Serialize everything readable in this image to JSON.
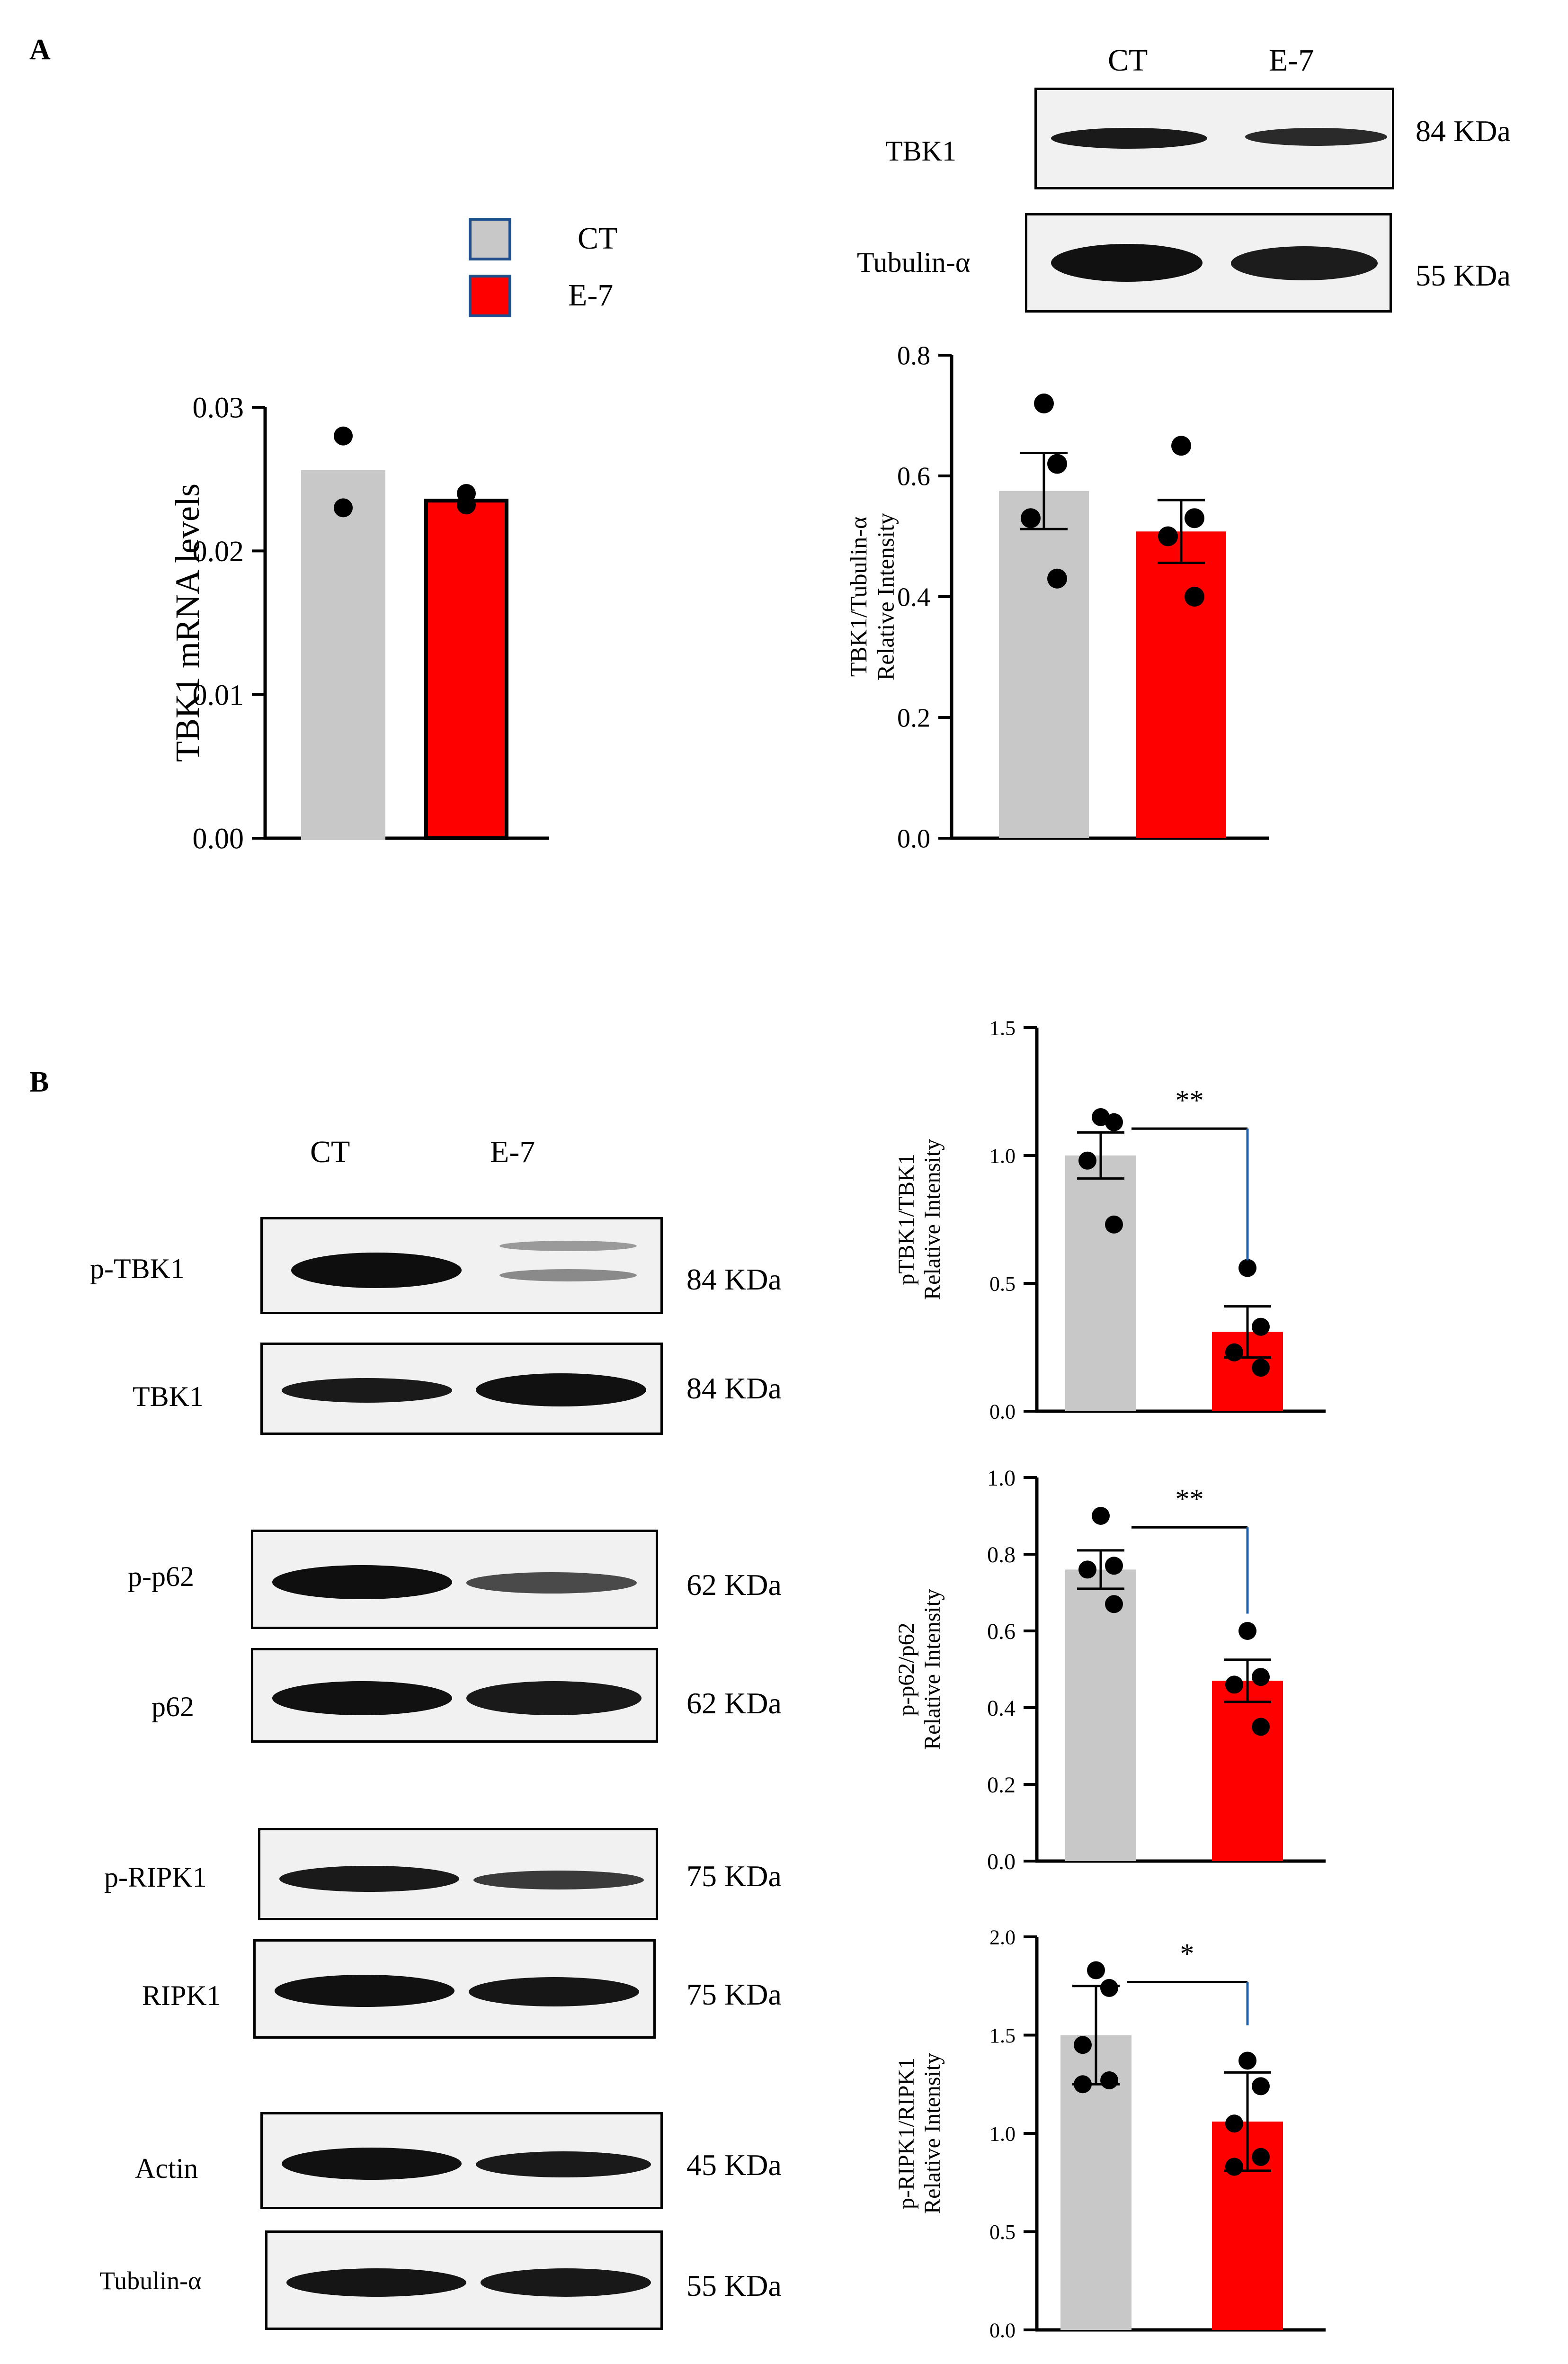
{
  "panels": {
    "A": {
      "label": "A"
    },
    "B": {
      "label": "B"
    }
  },
  "legend": {
    "items": [
      {
        "name": "CT",
        "color": "#c8c8c8"
      },
      {
        "name": "E-7",
        "color": "#ff0000"
      }
    ]
  },
  "blot_A": {
    "lanes": [
      "CT",
      "E-7"
    ],
    "rows": [
      {
        "protein": "TBK1",
        "kda": "84 KDa"
      },
      {
        "protein": "Tubulin-α",
        "kda": "55 KDa"
      }
    ]
  },
  "blot_B": {
    "lanes": [
      "CT",
      "E-7"
    ],
    "rows": [
      {
        "protein": "p-TBK1",
        "kda": "84 KDa"
      },
      {
        "protein": "TBK1",
        "kda": "84 KDa"
      },
      {
        "protein": "p-p62",
        "kda": "62 KDa"
      },
      {
        "protein": "p62",
        "kda": "62 KDa"
      },
      {
        "protein": "p-RIPK1",
        "kda": "75 KDa"
      },
      {
        "protein": "RIPK1",
        "kda": "75 KDa"
      },
      {
        "protein": "Actin",
        "kda": "45 KDa"
      },
      {
        "protein": "Tubulin-α",
        "kda": "55 KDa"
      }
    ]
  },
  "colors": {
    "ct": "#c8c8c8",
    "e7": "#ff0000",
    "sig_line": "#1f5fa8"
  },
  "chart_data": [
    {
      "id": "mrna",
      "type": "bar",
      "categories": [
        "CT",
        "E-7"
      ],
      "values": [
        0.0255,
        0.0235
      ],
      "points": [
        [
          0.028,
          0.023
        ],
        [
          0.0232,
          0.024
        ]
      ],
      "ylabel": [
        "TBK1 mRNA levels"
      ],
      "ylim": [
        0,
        0.03
      ],
      "ticks": [
        0.0,
        0.01,
        0.02,
        0.03
      ],
      "tick_labels": [
        "0.00",
        "0.01",
        "0.02",
        "0.03"
      ],
      "bar_outline": true
    },
    {
      "id": "tbk1_tub",
      "type": "bar",
      "categories": [
        "CT",
        "E-7"
      ],
      "values": [
        0.575,
        0.508
      ],
      "sem": [
        0.063,
        0.052
      ],
      "points": [
        [
          0.72,
          0.62,
          0.53,
          0.43
        ],
        [
          0.65,
          0.53,
          0.5,
          0.4
        ]
      ],
      "ylabel": [
        "TBK1/Tubulin-α",
        "Relative Intensity"
      ],
      "ylim": [
        0,
        0.8
      ],
      "ticks": [
        0,
        0.2,
        0.4,
        0.6,
        0.8
      ],
      "tick_labels": [
        "0.0",
        "0.2",
        "0.4",
        "0.6",
        "0.8"
      ]
    },
    {
      "id": "ptbk1",
      "type": "bar",
      "categories": [
        "CT",
        "E-7"
      ],
      "values": [
        1.0,
        0.31
      ],
      "sem": [
        0.09,
        0.1
      ],
      "points": [
        [
          1.15,
          1.13,
          0.98,
          0.73
        ],
        [
          0.56,
          0.33,
          0.23,
          0.17
        ]
      ],
      "ylabel": [
        "pTBK1/TBK1",
        "Relative Intensity"
      ],
      "ylim": [
        0,
        1.5
      ],
      "ticks": [
        0,
        0.5,
        1.0,
        1.5
      ],
      "tick_labels": [
        "0.0",
        "0.5",
        "1.0",
        "1.5"
      ],
      "significance": "**"
    },
    {
      "id": "pp62",
      "type": "bar",
      "categories": [
        "CT",
        "E-7"
      ],
      "values": [
        0.76,
        0.47
      ],
      "sem": [
        0.05,
        0.055
      ],
      "points": [
        [
          0.9,
          0.77,
          0.76,
          0.67
        ],
        [
          0.6,
          0.48,
          0.46,
          0.35
        ]
      ],
      "ylabel": [
        "p-p62/p62",
        "Relative Intensity"
      ],
      "ylim": [
        0,
        1.0
      ],
      "ticks": [
        0,
        0.2,
        0.4,
        0.6,
        0.8,
        1.0
      ],
      "tick_labels": [
        "0.0",
        "0.2",
        "0.4",
        "0.6",
        "0.8",
        "1.0"
      ],
      "significance": "**"
    },
    {
      "id": "pripk1",
      "type": "bar",
      "categories": [
        "CT",
        "E-7"
      ],
      "values": [
        1.5,
        1.06
      ],
      "sem": [
        0.25,
        0.25
      ],
      "points": [
        [
          1.83,
          1.74,
          1.45,
          1.27,
          1.25
        ],
        [
          1.37,
          1.24,
          1.05,
          0.88,
          0.83
        ]
      ],
      "ylabel": [
        "p-RIPK1/RIPK1",
        "Relative Intensity"
      ],
      "ylim": [
        0,
        2.0
      ],
      "ticks": [
        0,
        0.5,
        1.0,
        1.5,
        2.0
      ],
      "tick_labels": [
        "0.0",
        "0.5",
        "1.0",
        "1.5",
        "2.0"
      ],
      "significance": "*"
    }
  ]
}
